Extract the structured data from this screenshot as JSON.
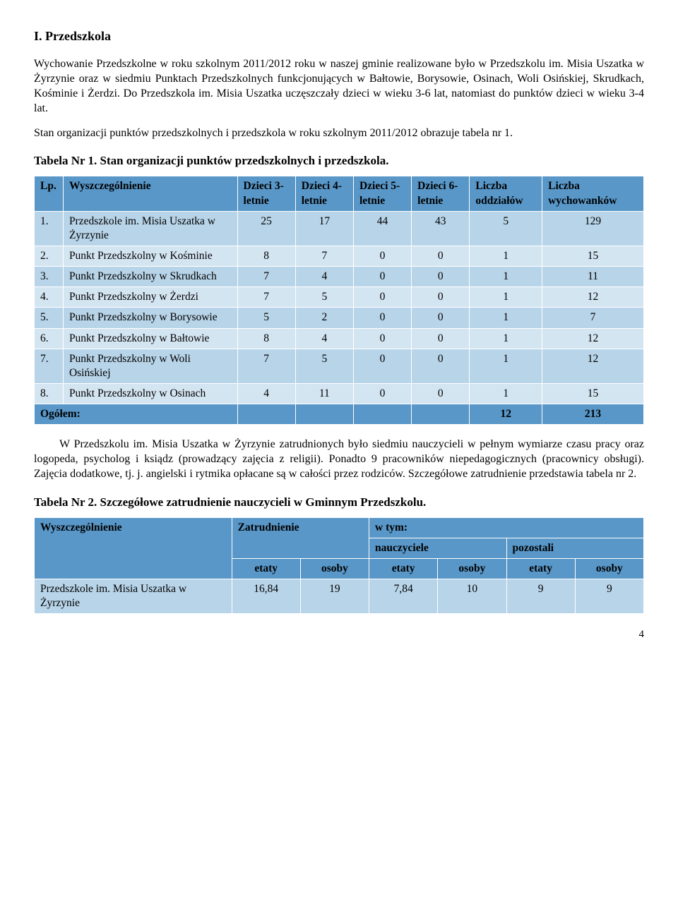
{
  "section_heading": "I. Przedszkola",
  "para1": "Wychowanie Przedszkolne w roku szkolnym 2011/2012 roku w naszej gminie realizowane było w Przedszkolu im. Misia Uszatka w Żyrzynie oraz w siedmiu Punktach Przedszkolnych funkcjonujących w Bałtowie, Borysowie, Osinach, Woli Osińskiej, Skrudkach, Kośminie i Żerdzi. Do Przedszkola im. Misia Uszatka uczęszczały dzieci w wieku 3-6 lat, natomiast do punktów dzieci w wieku 3-4 lat.",
  "para2": "Stan organizacji punktów przedszkolnych i przedszkola w roku szkolnym 2011/2012 obrazuje tabela nr 1.",
  "table1": {
    "title": "Tabela Nr 1. Stan organizacji punktów przedszkolnych i przedszkola.",
    "headers": [
      "Lp.",
      "Wyszczególnienie",
      "Dzieci 3-letnie",
      "Dzieci 4-letnie",
      "Dzieci 5-letnie",
      "Dzieci 6-letnie",
      "Liczba oddziałów",
      "Liczba wychowanków"
    ],
    "rows": [
      {
        "lp": "1.",
        "name": "Przedszkole im. Misia Uszatka w Żyrzynie",
        "d3": "25",
        "d4": "17",
        "d5": "44",
        "d6": "43",
        "odd": "5",
        "wych": "129"
      },
      {
        "lp": "2.",
        "name": "Punkt Przedszkolny w Kośminie",
        "d3": "8",
        "d4": "7",
        "d5": "0",
        "d6": "0",
        "odd": "1",
        "wych": "15"
      },
      {
        "lp": "3.",
        "name": "Punkt Przedszkolny w Skrudkach",
        "d3": "7",
        "d4": "4",
        "d5": "0",
        "d6": "0",
        "odd": "1",
        "wych": "11"
      },
      {
        "lp": "4.",
        "name": "Punkt Przedszkolny w Żerdzi",
        "d3": "7",
        "d4": "5",
        "d5": "0",
        "d6": "0",
        "odd": "1",
        "wych": "12"
      },
      {
        "lp": "5.",
        "name": "Punkt Przedszkolny w Borysowie",
        "d3": "5",
        "d4": "2",
        "d5": "0",
        "d6": "0",
        "odd": "1",
        "wych": "7"
      },
      {
        "lp": "6.",
        "name": "Punkt Przedszkolny w Bałtowie",
        "d3": "8",
        "d4": "4",
        "d5": "0",
        "d6": "0",
        "odd": "1",
        "wych": "12"
      },
      {
        "lp": "7.",
        "name": "Punkt Przedszkolny w Woli Osińskiej",
        "d3": "7",
        "d4": "5",
        "d5": "0",
        "d6": "0",
        "odd": "1",
        "wych": "12"
      },
      {
        "lp": "8.",
        "name": "Punkt Przedszkolny w Osinach",
        "d3": "4",
        "d4": "11",
        "d5": "0",
        "d6": "0",
        "odd": "1",
        "wych": "15"
      }
    ],
    "total": {
      "label": "Ogółem:",
      "odd": "12",
      "wych": "213"
    }
  },
  "para3": "W Przedszkolu im. Misia Uszatka w Żyrzynie zatrudnionych było siedmiu nauczycieli w pełnym wymiarze czasu pracy oraz logopeda, psycholog i ksiądz (prowadzący zajęcia z religii). Ponadto 9 pracowników niepedagogicznych (pracownicy obsługi). Zajęcia dodatkowe, tj. j. angielski i rytmika opłacane są w całości przez rodziców. Szczegółowe zatrudnienie przedstawia tabela nr 2.",
  "table2": {
    "title": "Tabela Nr 2. Szczegółowe zatrudnienie nauczycieli w Gminnym Przedszkolu.",
    "h_wysz": "Wyszczególnienie",
    "h_zatr": "Zatrudnienie",
    "h_wtym": "w tym:",
    "h_naucz": "nauczyciele",
    "h_poz": "pozostali",
    "h_etaty": "etaty",
    "h_osoby": "osoby",
    "row": {
      "name": "Przedszkole im. Misia Uszatka w Żyrzynie",
      "z_et": "16,84",
      "z_os": "19",
      "n_et": "7,84",
      "n_os": "10",
      "p_et": "9",
      "p_os": "9"
    }
  },
  "page_number": "4",
  "colors": {
    "header_bg": "#5897c8",
    "row_even_bg": "#b8d4e8",
    "row_odd_bg": "#d4e5f2",
    "border": "#ffffff"
  }
}
